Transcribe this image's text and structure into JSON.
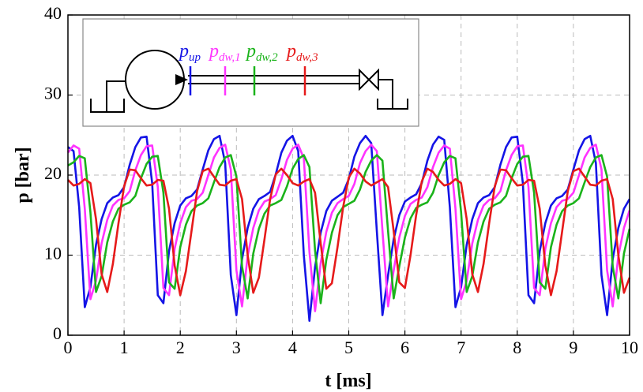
{
  "chart_data": {
    "type": "line",
    "xlabel": "t [ms]",
    "ylabel": "p [bar]",
    "xlim": [
      0,
      10
    ],
    "ylim": [
      0,
      40
    ],
    "xticks": [
      0,
      1,
      2,
      3,
      4,
      5,
      6,
      7,
      8,
      9,
      10
    ],
    "yticks": [
      0,
      10,
      20,
      30,
      40
    ],
    "grid": true,
    "x": [
      0,
      0.1,
      0.2,
      0.3,
      0.4,
      0.5,
      0.6,
      0.7,
      0.8,
      0.9,
      1,
      1.1,
      1.2,
      1.3,
      1.4,
      1.5,
      1.6,
      1.7,
      1.8,
      1.9,
      2,
      2.1,
      2.2,
      2.3,
      2.4,
      2.5,
      2.6,
      2.7,
      2.8,
      2.9,
      3,
      3.1,
      3.2,
      3.3,
      3.4,
      3.5,
      3.6,
      3.7,
      3.8,
      3.9,
      4,
      4.1,
      4.2,
      4.3,
      4.4,
      4.5,
      4.6,
      4.7,
      4.8,
      4.9,
      5,
      5.1,
      5.2,
      5.3,
      5.4,
      5.5,
      5.6,
      5.7,
      5.8,
      5.9,
      6,
      6.1,
      6.2,
      6.3,
      6.4,
      6.5,
      6.6,
      6.7,
      6.8,
      6.9,
      7,
      7.1,
      7.2,
      7.3,
      7.4,
      7.5,
      7.6,
      7.7,
      7.8,
      7.9,
      8,
      8.1,
      8.2,
      8.3,
      8.4,
      8.5,
      8.6,
      8.7,
      8.8,
      8.9,
      9,
      9.1,
      9.2,
      9.3,
      9.4,
      9.5,
      9.6,
      9.7,
      9.8,
      9.9,
      10
    ],
    "series": [
      {
        "name": "p",
        "name_sub": "up",
        "color": "#1414e6",
        "values": [
          23.5,
          23.0,
          16,
          3.5,
          6,
          11.3,
          14.5,
          16.5,
          17.2,
          17.5,
          18.5,
          21.3,
          23.5,
          24.7,
          24.8,
          19,
          5,
          4,
          10.5,
          14,
          16.2,
          17.1,
          17.4,
          18.2,
          20.7,
          23.1,
          24.5,
          24.9,
          21.5,
          7.5,
          2.5,
          9.5,
          13.4,
          15.8,
          17,
          17.4,
          17.9,
          20.1,
          22.8,
          24.3,
          24.9,
          23,
          10,
          1.8,
          8.5,
          12.8,
          15.5,
          16.8,
          17.3,
          17.8,
          19.5,
          22.3,
          24,
          24.9,
          24,
          13,
          2.5,
          7.5,
          12,
          15,
          16.7,
          17.2,
          17.6,
          19,
          21.8,
          23.8,
          24.8,
          24.4,
          16,
          3.5,
          6,
          11.3,
          14.5,
          16.5,
          17.2,
          17.5,
          18.5,
          21.3,
          23.5,
          24.7,
          24.8,
          19,
          5,
          4,
          10.5,
          14,
          16.2,
          17.1,
          17.4,
          18.2,
          20.7,
          23.1,
          24.5,
          24.9,
          21.5,
          7.5,
          2.5,
          9.5,
          13.4,
          15.8,
          17
        ]
      },
      {
        "name": "p",
        "name_sub": "dw,1",
        "color": "#ff33ff",
        "values": [
          22.8,
          23.7,
          23.3,
          15.8,
          4.5,
          6.8,
          11.5,
          14.4,
          16.2,
          16.9,
          17.1,
          18.0,
          20.6,
          22.5,
          23.6,
          23.7,
          18.5,
          5.9,
          5.0,
          10.8,
          14.0,
          16.0,
          16.8,
          17.0,
          17.8,
          20.0,
          22.2,
          23.4,
          23.8,
          20.7,
          8.1,
          3.6,
          9.9,
          13.4,
          15.6,
          16.7,
          17.0,
          17.5,
          19.5,
          21.9,
          23.3,
          23.8,
          22.1,
          10.4,
          3.0,
          9.0,
          12.9,
          15.3,
          16.5,
          17.0,
          17.4,
          18.9,
          21.5,
          23.0,
          23.8,
          23.0,
          13.1,
          3.6,
          8.1,
          12.2,
          14.9,
          16.4,
          16.9,
          17.2,
          18.5,
          21.0,
          22.8,
          23.7,
          23.3,
          15.8,
          4.5,
          6.8,
          11.5,
          14.4,
          16.2,
          16.9,
          17.1,
          18.0,
          20.6,
          22.5,
          23.6,
          23.7,
          18.5,
          5.9,
          5.0,
          10.8,
          14.0,
          16.0,
          16.8,
          17.0,
          17.8,
          20.0,
          22.2,
          23.4,
          23.8,
          20.7,
          8.1,
          3.6,
          9.9,
          13.4,
          15.6
        ]
      },
      {
        "name": "p",
        "name_sub": "dw,2",
        "color": "#1ab31a",
        "values": [
          21.2,
          21.6,
          22.4,
          22.1,
          15.4,
          5.4,
          7.4,
          11.6,
          14.2,
          15.8,
          16.3,
          16.6,
          17.4,
          19.6,
          21.4,
          22.3,
          22.4,
          17.8,
          6.6,
          5.8,
          11.0,
          13.8,
          15.5,
          16.2,
          16.5,
          17.1,
          19.1,
          21.0,
          22.2,
          22.5,
          19.8,
          8.6,
          4.6,
          10.2,
          13.3,
          15.2,
          16.2,
          16.5,
          16.9,
          18.6,
          20.8,
          22.0,
          22.5,
          21.0,
          10.6,
          4.0,
          9.4,
          12.8,
          15.0,
          16.0,
          16.4,
          16.8,
          18.2,
          20.4,
          21.8,
          22.5,
          21.8,
          13.0,
          4.6,
          8.6,
          12.2,
          14.6,
          15.9,
          16.3,
          16.6,
          17.8,
          20.0,
          21.6,
          22.4,
          22.1,
          15.4,
          5.4,
          7.4,
          11.6,
          14.2,
          15.8,
          16.3,
          16.6,
          17.4,
          19.6,
          21.4,
          22.3,
          22.4,
          17.8,
          6.6,
          5.8,
          11.0,
          13.8,
          15.5,
          16.2,
          16.5,
          17.1,
          19.1,
          21.0,
          22.2,
          22.5,
          19.8,
          8.6,
          4.6,
          10.2,
          13.3
        ]
      },
      {
        "name": "p",
        "name_sub": "dw,3",
        "color": "#e61a1a",
        "values": [
          19.4,
          18.7,
          18.9,
          19.5,
          19,
          14.5,
          7.6,
          5.4,
          8.9,
          14,
          18.6,
          20.7,
          20.6,
          19.6,
          18.7,
          18.8,
          19.4,
          19.3,
          15.8,
          8.7,
          5,
          8,
          13,
          18,
          20.5,
          20.8,
          19.8,
          18.8,
          18.7,
          19.3,
          19.5,
          17,
          10,
          5.3,
          7.2,
          12,
          17,
          20.1,
          20.8,
          20,
          19,
          18.7,
          19.2,
          19.5,
          17.8,
          11.5,
          5.8,
          6.5,
          11,
          16,
          19.7,
          20.8,
          20.2,
          19.2,
          18.7,
          19.1,
          19.5,
          18.5,
          13,
          6.6,
          5.9,
          10,
          15,
          19.2,
          20.8,
          20.4,
          19.4,
          18.7,
          18.9,
          19.5,
          19,
          14.5,
          7.6,
          5.4,
          8.9,
          14,
          18.6,
          20.7,
          20.6,
          19.6,
          18.7,
          18.8,
          19.4,
          19.3,
          15.8,
          8.7,
          5,
          8,
          13,
          18,
          20.5,
          20.8,
          19.8,
          18.8,
          18.7,
          19.3,
          19.5,
          17,
          10,
          5.3,
          7.2
        ]
      }
    ]
  }
}
